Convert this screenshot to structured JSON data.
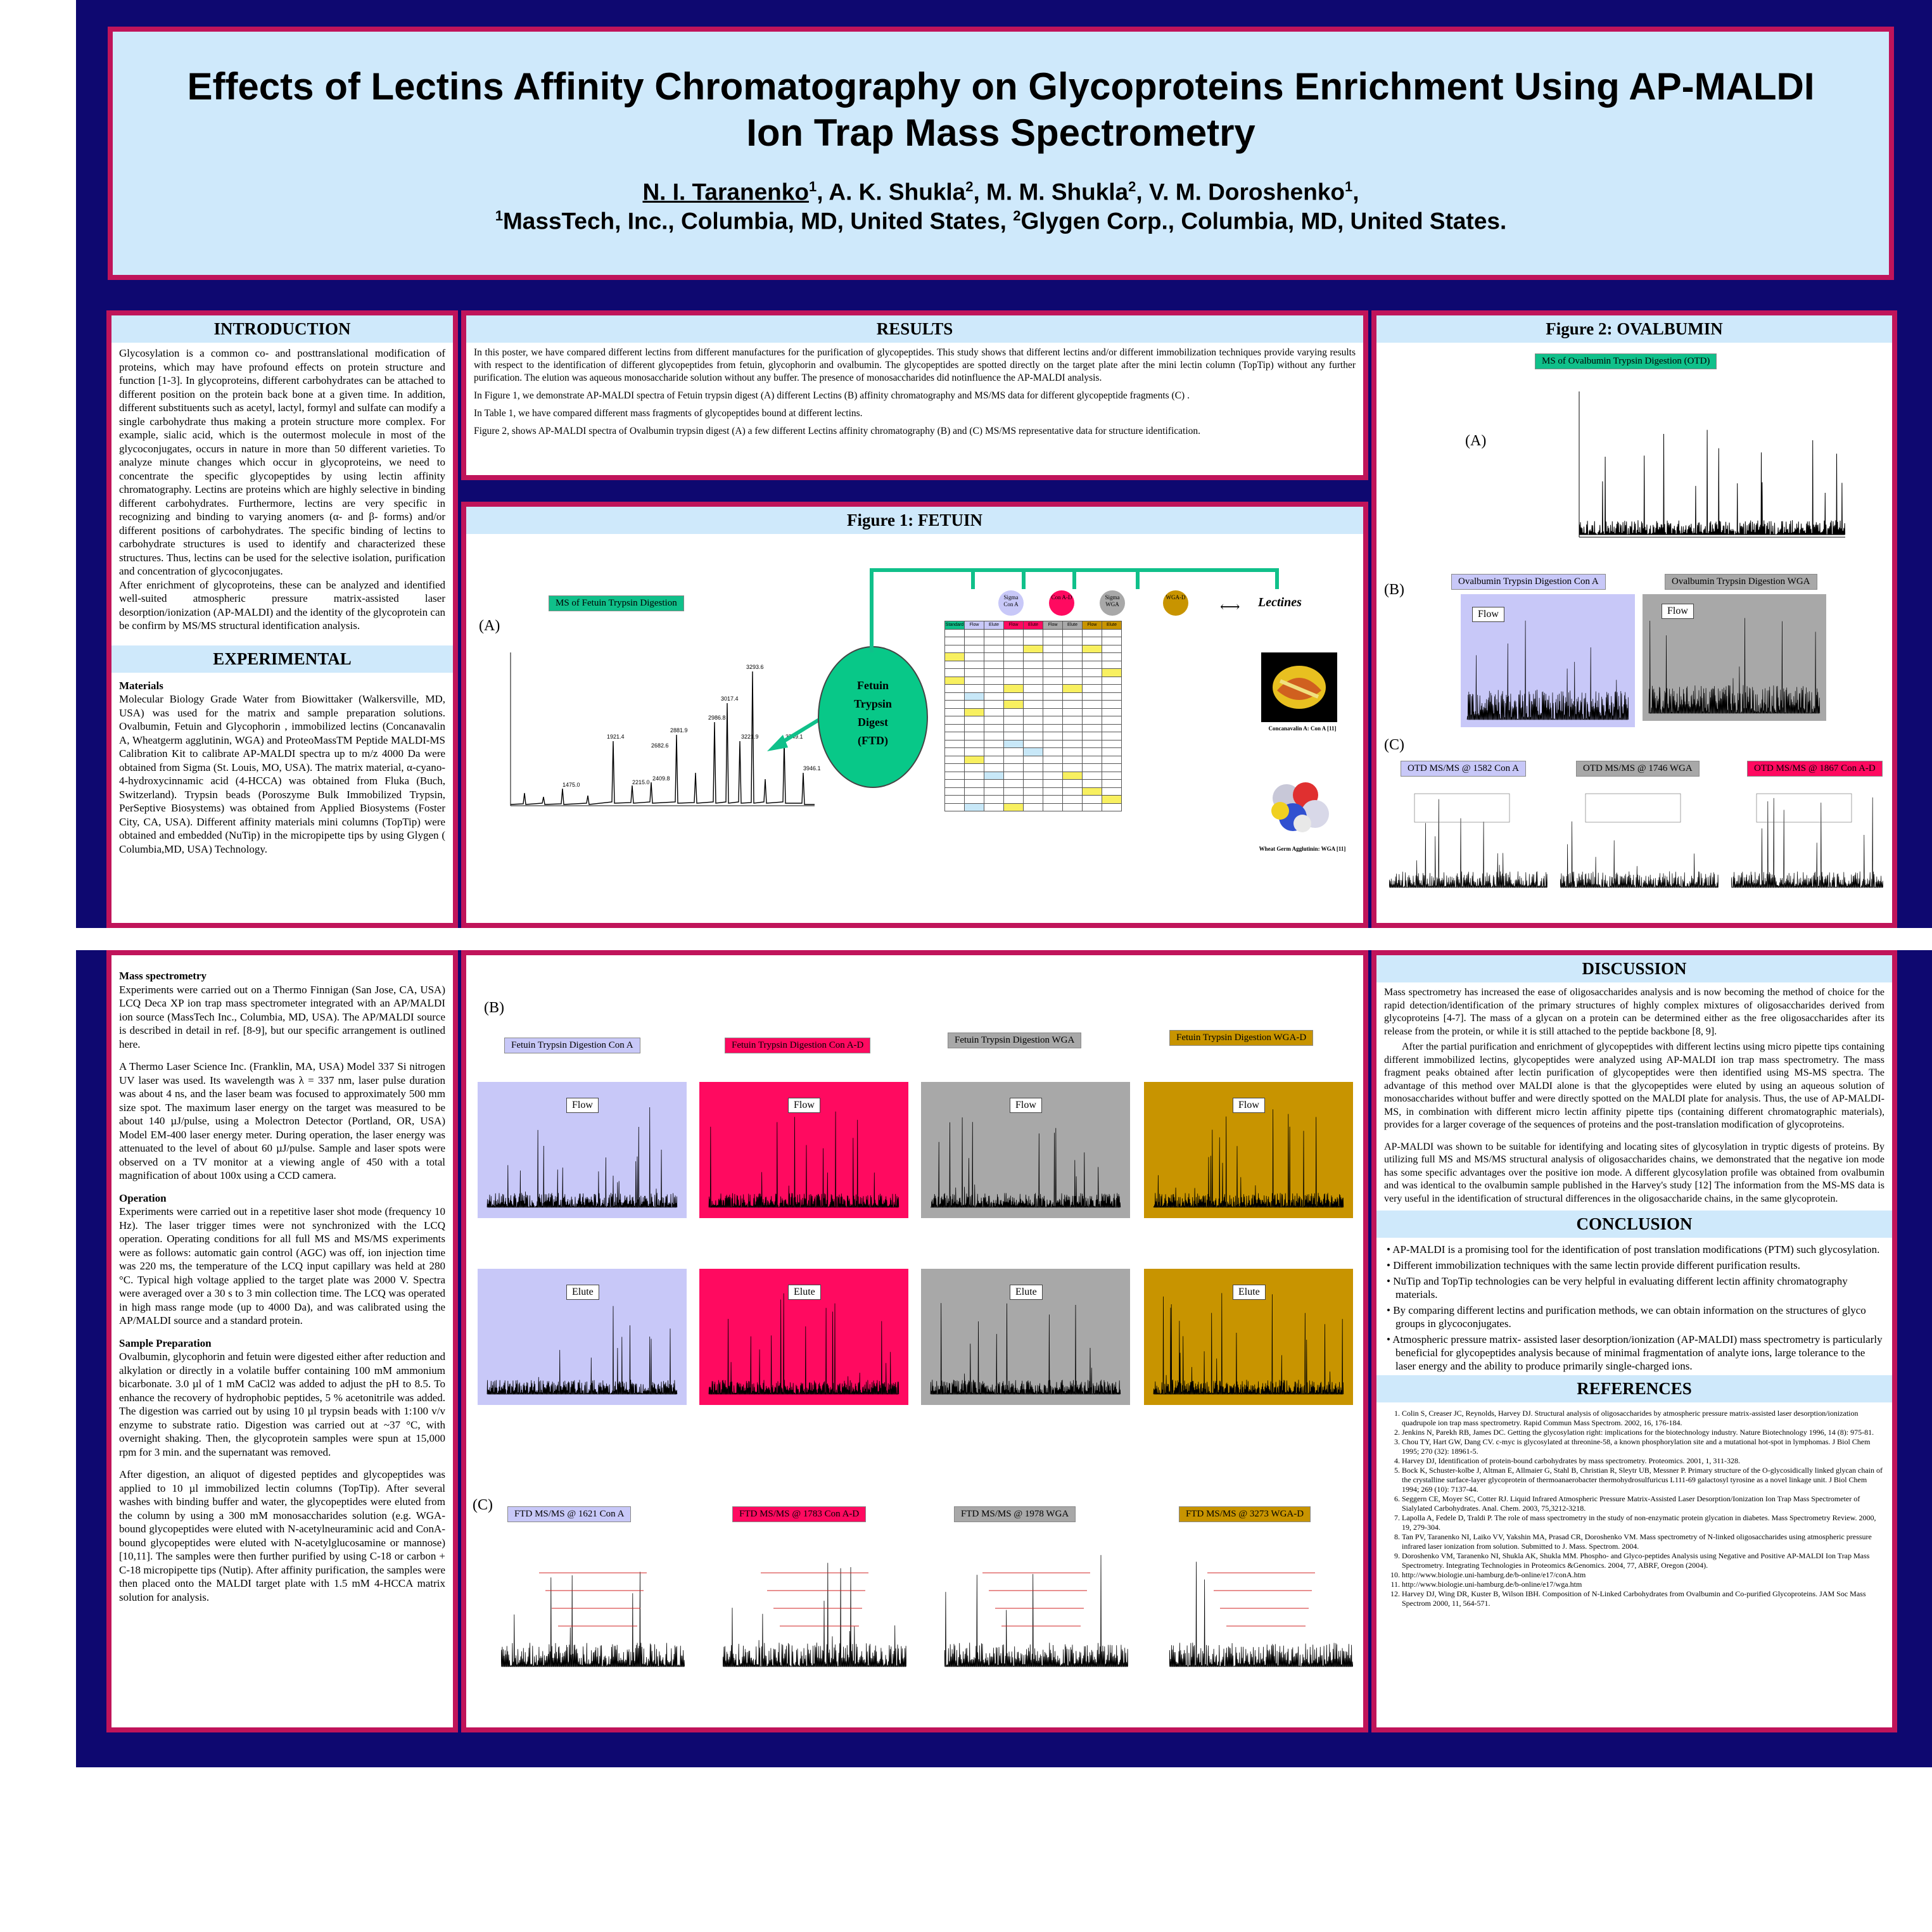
{
  "title": {
    "line1": "Effects of Lectins Affinity Chromatography on Glycoproteins Enrichment Using AP-MALDI",
    "line2": "Ion Trap Mass Spectrometry",
    "authors_first": "N. I. Taranenko",
    "authors_first_sup": "1",
    "authors_rest": [
      {
        "name": ", A. K. Shukla",
        "sup": "2"
      },
      {
        "name": ", M. M. Shukla",
        "sup": "2"
      },
      {
        "name": ", V. M. Doroshenko",
        "sup": "1"
      },
      {
        "name": ",",
        "sup": ""
      }
    ],
    "affil_sup1": "1",
    "affil1": "MassTech, Inc., Columbia, MD, United States, ",
    "affil_sup2": "2",
    "affil2": "Glygen Corp., Columbia, MD, United States."
  },
  "introduction": {
    "heading": "INTRODUCTION",
    "p1": "Glycosylation is a common co- and posttranslational modification of proteins, which may have profound effects on protein structure and function [1-3]. In glycoproteins, different carbohydrates can be attached to different position on the protein back bone at a given time. In addition, different substituents such as acetyl, lactyl, formyl and sulfate can modify a single carbohydrate thus making a protein structure more complex. For example, sialic acid, which is the outermost molecule in most of the glycoconjugates, occurs in nature in more than 50 different varieties. To analyze minute changes which occur in glycoproteins, we need to concentrate the specific glycopeptides by using lectin affinity chromatography. Lectins are proteins which are highly selective in binding different carbohydrates. Furthermore, lectins are very specific in recognizing and binding to varying anomers (α- and β- forms) and/or different positions of carbohydrates. The specific binding of lectins to carbohydrate structures is used to identify and characterized these structures. Thus, lectins can be used for the selective isolation, purification and concentration of glycoconjugates.",
    "p2": "After enrichment of glycoproteins, these can be analyzed and identified well-suited atmospheric pressure matrix-assisted laser desorption/ionization (AP-MALDI) and the identity of the glycoprotein can be confirm by MS/MS structural identification analysis."
  },
  "experimental": {
    "heading": "EXPERIMENTAL",
    "materials_head": "Materials",
    "materials": "Molecular Biology Grade Water from Biowittaker (Walkersville, MD, USA) was used for the matrix and sample preparation solutions. Ovalbumin, Fetuin and Glycophorin , immobilized lectins (Concanavalin A, Wheatgerm agglutinin, WGA) and ProteoMassTM Peptide MALDI-MS Calibration Kit to calibrate AP-MALDI spectra up to m/z 4000 Da were obtained from Sigma (St. Louis, MO, USA). The matrix material, α-cyano-4-hydroxycinnamic acid (4-HCCA) was obtained from Fluka (Buch, Switzerland). Trypsin beads (Poroszyme Bulk Immobilized Trypsin, PerSeptive Biosystems) was obtained from Applied Biosystems (Foster City, CA, USA). Different affinity materials mini columns (TopTip) were obtained and embedded (NuTip) in the micropipette tips by using Glygen ( Columbia,MD, USA) Technology.",
    "ms_head": "Mass spectrometry",
    "ms1": "Experiments were carried out on a Thermo Finnigan (San Jose, CA, USA) LCQ Deca XP ion trap mass spectrometer integrated with an AP/MALDI ion source (MassTech Inc., Columbia, MD, USA). The AP/MALDI source is described in detail in ref. [8-9], but our specific arrangement is outlined here.",
    "ms2": "A Thermo Laser Science Inc. (Franklin, MA, USA) Model 337 Si nitrogen UV laser was used. Its wavelength was λ = 337 nm, laser pulse duration was about 4 ns, and the laser beam was focused to approximately 500 mm size spot. The maximum laser energy on the target was measured to be about 140 µJ/pulse, using a Molectron Detector (Portland, OR, USA) Model EM-400 laser energy meter. During operation, the laser energy was attenuated to the level of about 60 µJ/pulse. Sample and laser spots were observed on a TV monitor at a viewing angle of 450 with a total magnification of about 100x using a CCD camera.",
    "op_head": "Operation",
    "op": "Experiments were carried out in a repetitive laser shot mode (frequency 10 Hz). The laser trigger times were not synchronized with the LCQ operation. Operating conditions for all full MS and MS/MS experiments were as follows: automatic gain control (AGC) was off, ion injection time was 220 ms, the temperature of the LCQ input capillary was held at 280 °C. Typical high voltage applied to the target plate was 2000 V. Spectra were averaged over a 30 s to 3 min collection time. The LCQ was operated in high mass range mode (up to 4000 Da), and was calibrated using the AP/MALDI source and a standard protein.",
    "sp_head": "Sample Preparation",
    "sp1": "Ovalbumin, glycophorin and fetuin were digested either after reduction and alkylation or directly in a volatile buffer containing 100 mM ammonium bicarbonate. 3.0 µl of 1 mM CaCl2 was added to adjust the pH to 8.5. To enhance the recovery of hydrophobic peptides, 5 % acetonitrile was added. The digestion was carried out by using 10 µl trypsin beads with 1:100 v/v enzyme to substrate ratio. Digestion was carried out at ~37 °C, with overnight shaking. Then, the glycoprotein samples were spun at 15,000 rpm for 3 min. and the supernatant was removed.",
    "sp2": "After digestion, an aliquot of digested peptides and glycopeptides was applied to 10 µl immobilized lectin columns (TopTip). After several washes with binding buffer and water, the glycopeptides were eluted from the column by using a 300 mM monosaccharides solution (e.g. WGA-bound glycopeptides were eluted with N-acetylneuraminic acid and ConA-bound glycopeptides were eluted with N-acetylglucosamine or mannose) [10,11]. The samples were then further purified by using C-18 or carbon + C-18 micropipette tips (Nutip). After affinity purification, the samples were then placed onto the MALDI target plate with 1.5 mM 4-HCCA matrix solution for analysis."
  },
  "results": {
    "heading": "RESULTS",
    "p1": "In this poster, we have compared different lectins from different manufactures for the purification of glycopeptides. This study shows that different lectins and/or different immobilization techniques provide varying results with respect to the identification of different glycopeptides from fetuin, glycophorin and ovalbumin. The glycopeptides are spotted directly on the target plate after the mini lectin column (TopTip) without any further purification. The elution was aqueous monosaccharide solution without any buffer. The presence of monosaccharides did notinfluence the AP-MALDI analysis.",
    "p2": "In Figure 1, we demonstrate AP-MALDI spectra of Fetuin trypsin digest (A) different Lectins (B) affinity chromatography and MS/MS data for different glycopeptide fragments (C) .",
    "p3": "In Table 1, we have compared different mass fragments of glycopeptides bound at different lectins.",
    "p4": "Figure 2, shows AP-MALDI spectra of Ovalbumin trypsin digest (A) a few different Lectins affinity chromatography (B) and (C) MS/MS representative data for structure identification."
  },
  "figure1": {
    "heading": "Figure 1: FETUIN",
    "label_a": "(A)",
    "label_b": "(B)",
    "label_c": "(C)",
    "ms_tag": "MS of Fetuin Trypsin Digestion",
    "digest": [
      "Fetuin",
      "Trypsin",
      "Digest",
      "(FTD)"
    ],
    "lectin_nodes": [
      "Sigma Con A",
      "Con A-D",
      "Sigma WGA",
      "WGA-D"
    ],
    "lectines_label": "Lectines",
    "cona_caption": "Concanavalin A: Con A [11]",
    "wga_caption": "Wheat Germ Agglutinin: WGA [11]",
    "table_head": [
      "Standard",
      "Flow",
      "Elute",
      "Flow",
      "Elute",
      "Flow",
      "Elute",
      "Flow",
      "Elute"
    ],
    "spectrum_peaks": [
      "3293.6",
      "3017.4",
      "3221.9",
      "2986.8",
      "2881.9",
      "2682.6",
      "1475.0",
      "1921.4",
      "2215.0",
      "2409.8",
      "3749.1",
      "3946.1"
    ],
    "b_tags": [
      "Fetuin Trypsin Digestion Con A",
      "Fetuin Trypsin Digestion Con A-D",
      "Fetuin Trypsin Digestion WGA",
      "Fetuin Trypsin Digestion WGA-D"
    ],
    "c_tags": [
      "FTD MS/MS @ 1621 Con A",
      "FTD MS/MS @ 1783 Con A-D",
      "FTD MS/MS @ 1978 WGA",
      "FTD MS/MS @ 3273 WGA-D"
    ],
    "flow": "Flow",
    "elute": "Elute"
  },
  "figure2": {
    "heading": "Figure 2: OVALBUMIN",
    "ms_tag": "MS of Ovalbumin Trypsin Digestion (OTD)",
    "label_a": "(A)",
    "label_b": "(B)",
    "label_c": "(C)",
    "b_tags": [
      "Ovalbumin Trypsin Digestion Con A",
      "Ovalbumin Trypsin Digestion WGA"
    ],
    "c_tags": [
      "OTD MS/MS @ 1582 Con A",
      "OTD MS/MS @ 1746 WGA",
      "OTD MS/MS @ 1867 Con A-D"
    ],
    "flow": "Flow"
  },
  "discussion": {
    "heading": "DISCUSSION",
    "p1": "Mass spectrometry has increased the ease of oligosaccharides analysis and is now becoming the method of choice for the rapid detection/identification of the primary structures of highly complex mixtures of oligosaccharides derived from glycoproteins [4-7]. The mass of a glycan on a protein can be determined either as the free oligosaccharides after its release from the protein, or while it is still attached to the peptide backbone [8, 9].",
    "p2": "After the partial purification and enrichment of glycopeptides with different lectins using micro pipette tips containing different immobilized lectins, glycopeptides were analyzed using AP-MALDI ion trap mass spectrometry. The mass fragment peaks obtained after lectin purification of glycopeptides were then identified using MS-MS spectra. The advantage of this method over MALDI alone is that the glycopeptides were eluted by using an aqueous solution of monosaccharides without buffer and were directly spotted on the MALDI plate for analysis. Thus, the use of AP-MALDI-MS, in combination with different micro lectin affinity pipette tips (containing different chromatographic materials), provides for a larger coverage of the sequences of proteins and the post-translation modification of glycoproteins.",
    "p3": "AP-MALDI was shown to be suitable for identifying and locating sites of glycosylation in tryptic digests of proteins. By utilizing full MS and MS/MS structural analysis of oligosaccharides chains, we demonstrated that the negative ion mode has some specific advantages over the positive ion mode. A different glycosylation profile was obtained from ovalbumin and was identical to the ovalbumin sample published in the Harvey's study [12] The information from the MS-MS data is very useful in the identification of structural differences in the oligosaccharide chains, in the same glycoprotein."
  },
  "conclusion": {
    "heading": "CONCLUSION",
    "items": [
      "AP-MALDI is a promising tool for the identification of post translation modifications (PTM) such glycosylation.",
      "Different immobilization techniques with the same lectin provide different purification results.",
      "NuTip and TopTip technologies can be very helpful in evaluating different lectin affinity chromatography materials.",
      "By comparing different lectins and purification methods, we can obtain information on the structures of glyco groups in glycoconjugates.",
      "Atmospheric pressure matrix- assisted laser desorption/ionization (AP-MALDI) mass spectrometry is particularly beneficial for glycopeptides analysis because of minimal fragmentation of analyte ions, large tolerance to the laser energy and the ability to produce primarily single-charged ions."
    ]
  },
  "references": {
    "heading": "REFERENCES",
    "items": [
      "Colin S, Creaser JC, Reynolds, Harvey DJ. Structural analysis of oligosaccharides by atmospheric pressure matrix-assisted laser desorption/ionization quadrupole ion trap mass spectrometry. Rapid Commun Mass Spectrom. 2002, 16, 176-184.",
      "Jenkins N, Parekh RB, James DC. Getting the glycosylation right: implications for the biotechnology industry. Nature Biotechnology 1996, 14 (8): 975-81.",
      "Chou TY, Hart GW, Dang CV. c-myc is glycosylated at threonine-58, a known phosphorylation site and a mutational hot-spot in lymphomas. J Biol Chem 1995; 270 (32): 18961-5.",
      "Harvey DJ, Identification of protein-bound carbohydrates by mass spectrometry. Proteomics. 2001, 1, 311-328.",
      "Bock K, Schuster-kolbe J, Altman E, Allmaier G, Stahl B, Christian R, Sleytr UB, Messner P. Primary structure of the O-glycosidically linked glycan chain of the crystalline surface-layer glycoprotein of thermoanaerobacter thermohydrosulfuricus L111-69 galactosyl tyrosine as a novel linkage unit. J Biol Chem 1994; 269 (10): 7137-44.",
      "Seggern CE, Moyer SC, Cotter RJ. Liquid Infrared Atmospheric Pressure Matrix-Assisted Laser Desorption/Ionization Ion Trap Mass Spectrometer of Sialylated Carbohydrates. Anal. Chem. 2003, 75,3212-3218.",
      "Lapolla A, Fedele D, Traldi P. The role of mass spectrometry in the study of non-enzymatic protein glycation in diabetes. Mass Spectrometry Review. 2000, 19, 279-304.",
      "Tan PV, Taranenko NI, Laiko VV, Yakshin MA, Prasad CR, Doroshenko VM. Mass spectrometry of N-linked oligosaccharides using atmospheric pressure infrared laser ionization from solution. Submitted to J. Mass. Spectrom. 2004.",
      "Doroshenko VM, Taranenko NI, Shukla AK, Shukla MM. Phospho- and Glyco-peptides Analysis using Negative and Positive AP-MALDI Ion Trap Mass Spectrometry. Integrating Technologies in Proteomics &Genomics. 2004, 77, ABRF, Oregon (2004).",
      "http://www.biologie.uni-hamburg.de/b-online/e17/conA.htm",
      "http://www.biologie.uni-hamburg.de/b-online/e17/wga.htm",
      "Harvey DJ, Wing DR, Kuster B, Wilson IBH. Composition of N-Linked Carbohydrates from Ovalbumin and Co-purified Glycoproteins. JAM Soc Mass Spectrom 2000, 11, 564-571."
    ]
  },
  "colors": {
    "navy": "#0e0870",
    "border": "#c0145a",
    "header_bg": "#cfe9fb",
    "con_a": "#c8c8f8",
    "con_a_d": "#ff0a60",
    "wga": "#a8a8a8",
    "wga_d": "#c89400",
    "digest": "#08c888"
  }
}
